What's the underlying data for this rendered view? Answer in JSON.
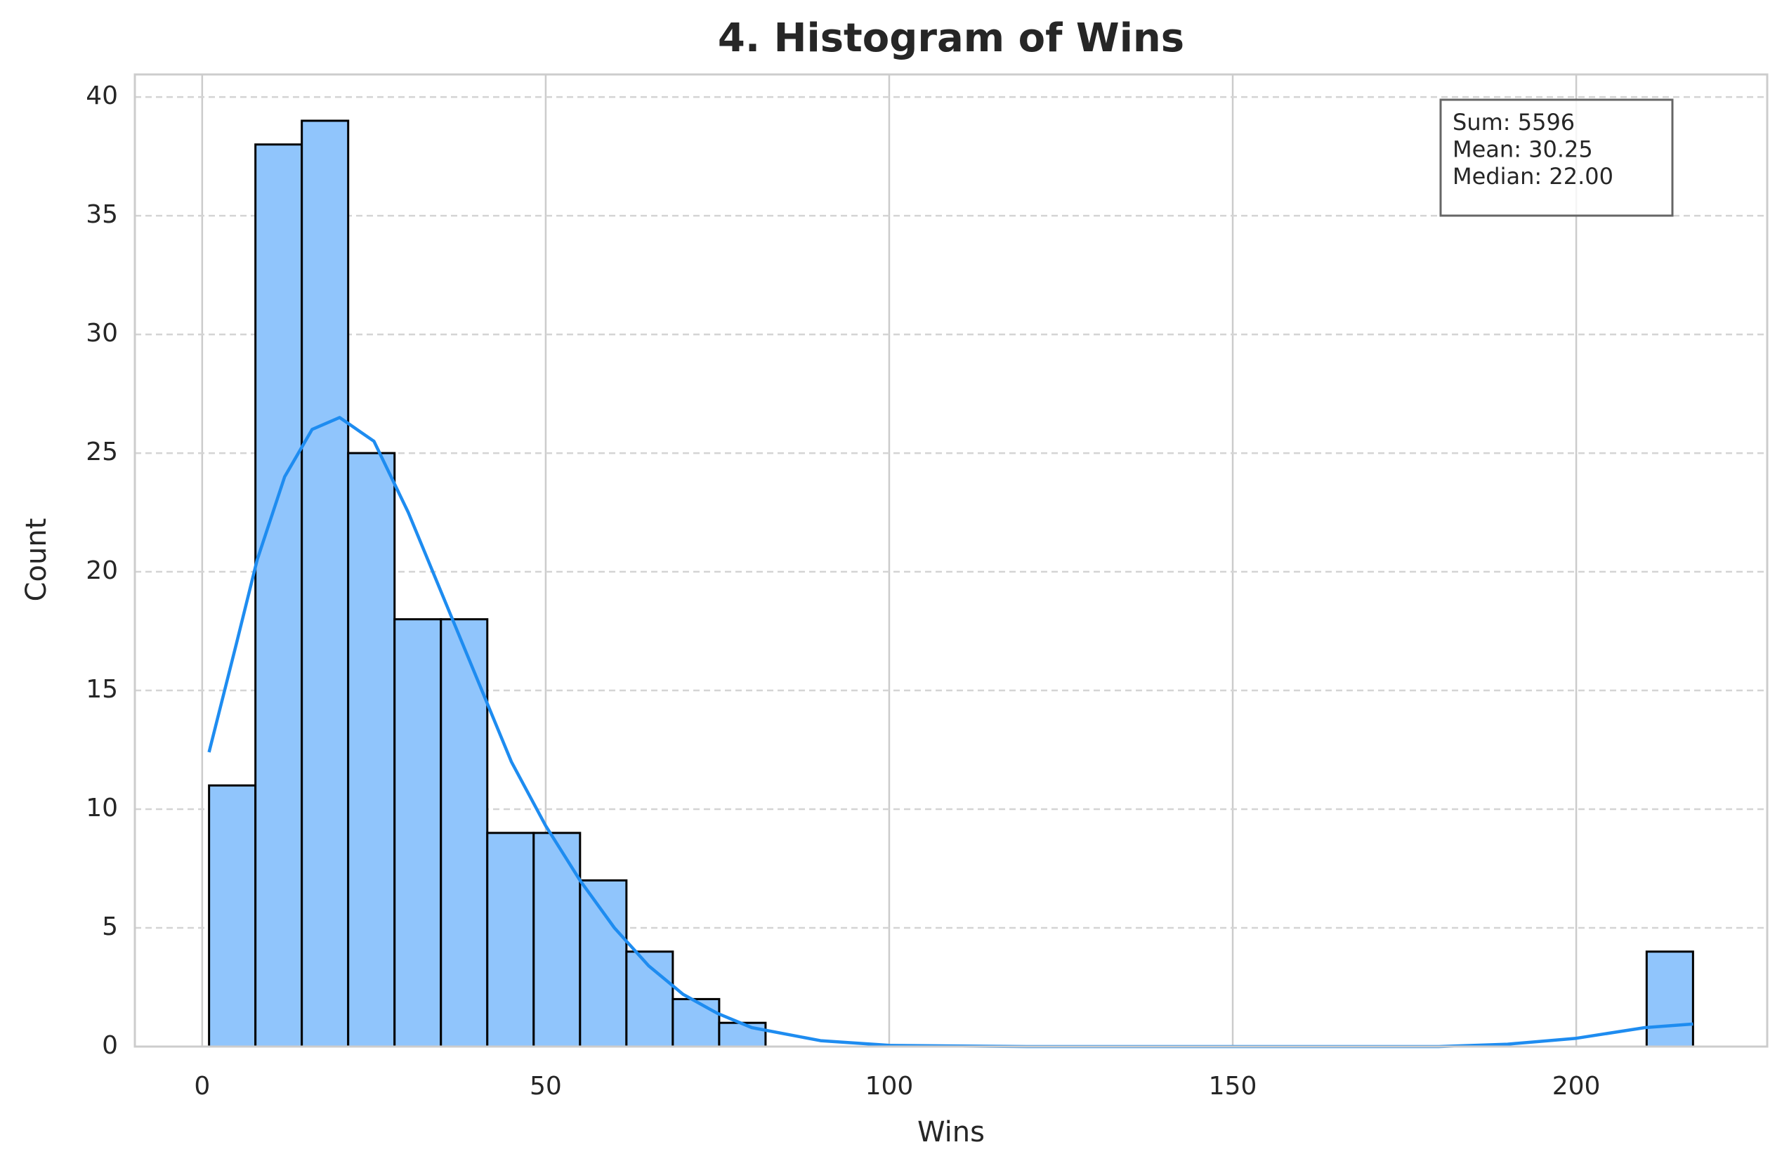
{
  "chart_data": {
    "type": "histogram",
    "title": "4. Histogram of Wins",
    "xlabel": "Wins",
    "ylabel": "Count",
    "bins": [
      1,
      7.75,
      14.5,
      21.25,
      28,
      34.75,
      41.5,
      48.25,
      55,
      61.75,
      68.5,
      75.25,
      82,
      88.75,
      95.5,
      102.25,
      109,
      115.75,
      122.5,
      129.25,
      136,
      142.75,
      149.5,
      156.25,
      163,
      169.75,
      176.5,
      183.25,
      190,
      196.75,
      203.5,
      210.25,
      217
    ],
    "counts": [
      11,
      38,
      39,
      25,
      18,
      18,
      9,
      9,
      7,
      4,
      2,
      1,
      0,
      0,
      0,
      0,
      0,
      0,
      0,
      0,
      0,
      0,
      0,
      0,
      0,
      0,
      0,
      0,
      0,
      0,
      0,
      4
    ],
    "color": "#90c5fc",
    "edgecolor": "#000000",
    "kde": {
      "color": "#1e8cf0",
      "x": [
        1,
        5,
        8,
        12,
        16,
        20,
        25,
        30,
        35,
        40,
        45,
        50,
        55,
        60,
        65,
        70,
        75,
        80,
        90,
        100,
        120,
        180,
        190,
        200,
        210,
        217
      ],
      "y": [
        12.4,
        17,
        20.5,
        24,
        26,
        26.5,
        25.5,
        22.5,
        19,
        15.5,
        12,
        9.3,
        7,
        5,
        3.4,
        2.2,
        1.4,
        0.8,
        0.25,
        0.05,
        0,
        0,
        0.1,
        0.35,
        0.8,
        0.95
      ]
    },
    "xlim": [
      -9.8,
      227.8
    ],
    "ylim": [
      0,
      40.95
    ],
    "xticks": [
      0,
      50,
      100,
      150,
      200
    ],
    "yticks": [
      0,
      5,
      10,
      15,
      20,
      25,
      30,
      35,
      40
    ],
    "grid": true,
    "annotation": [
      "Sum: 5596",
      "Mean: 30.25",
      "Median: 22.00"
    ]
  }
}
